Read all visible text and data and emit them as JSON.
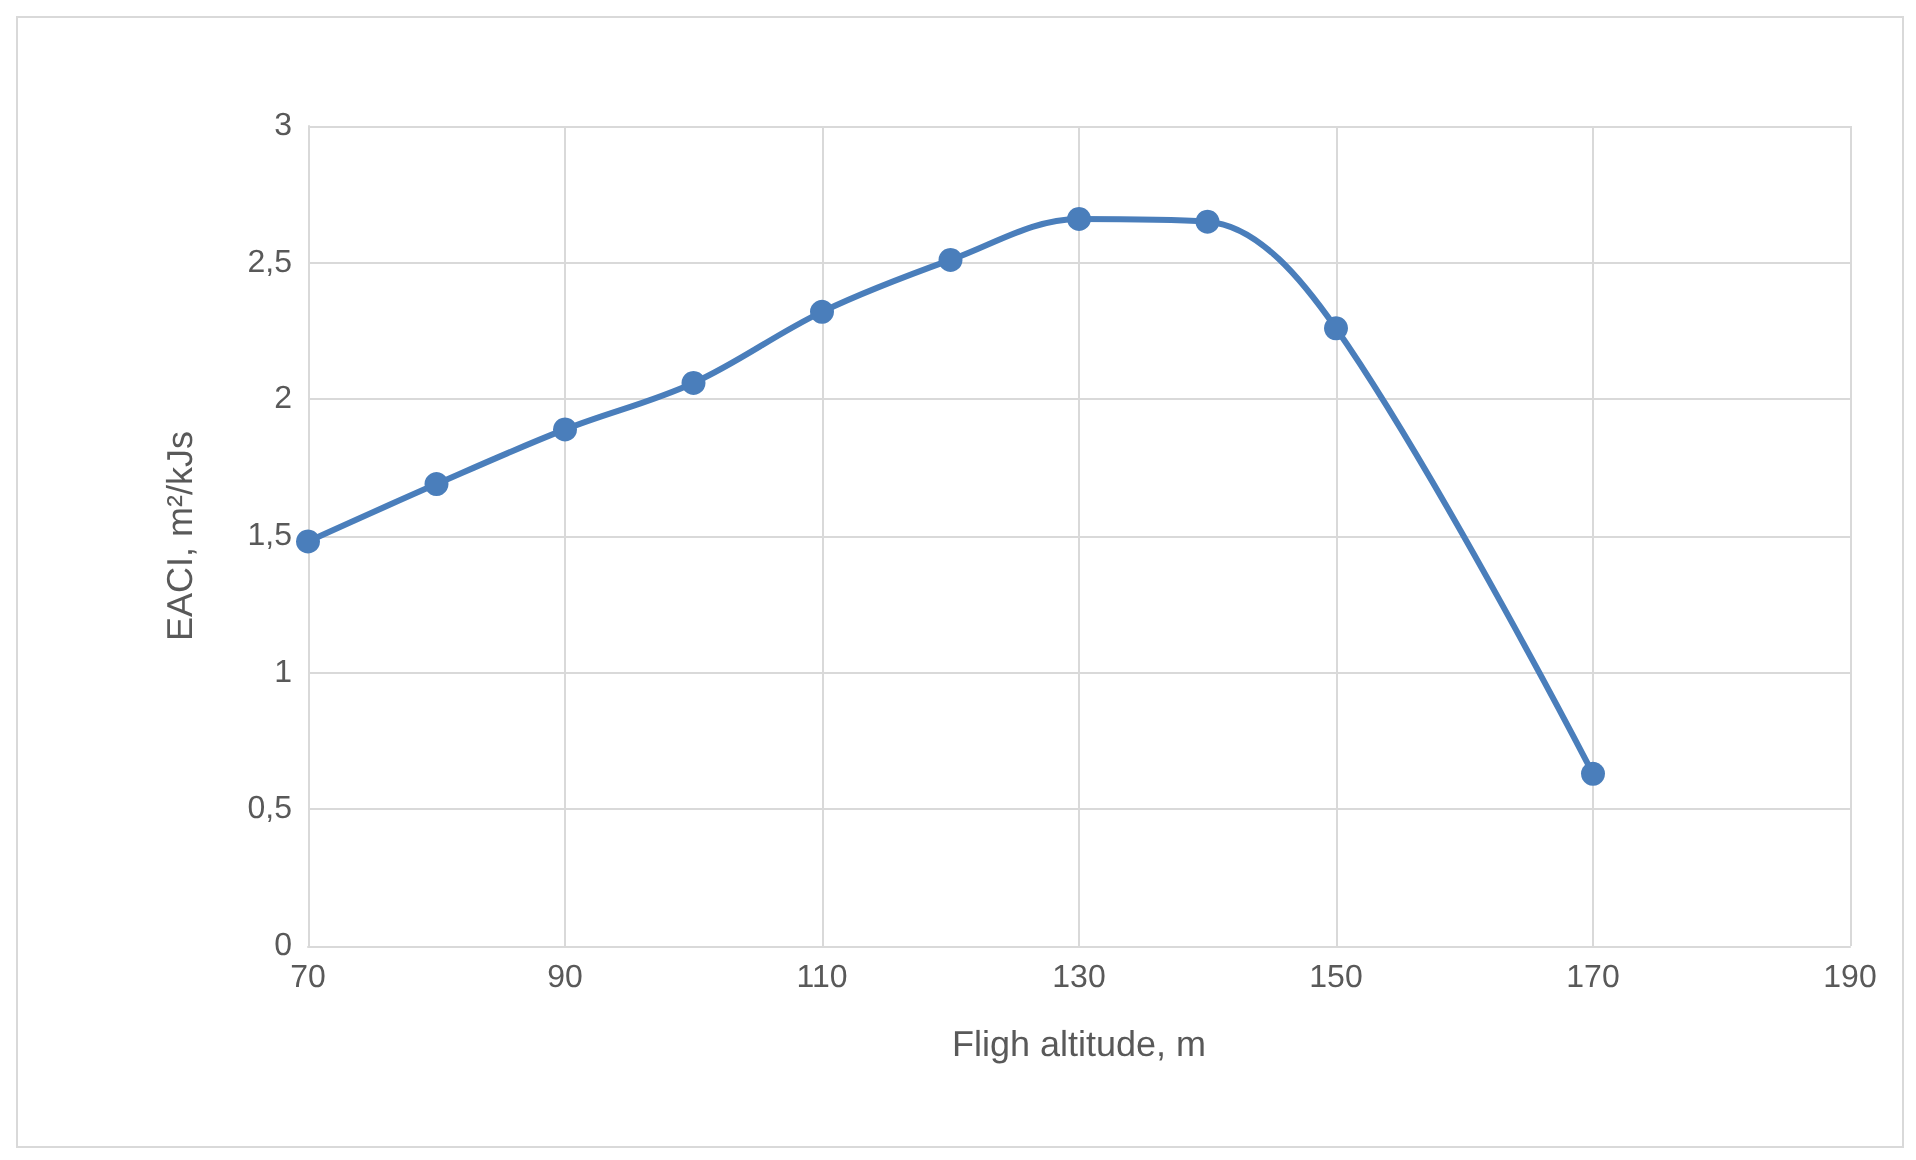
{
  "chart_data": {
    "type": "line",
    "xlabel": "Fligh altitude, m",
    "ylabel": "EACI, m²/kJs",
    "x": [
      70,
      80,
      90,
      100,
      110,
      120,
      130,
      140,
      150,
      170
    ],
    "series": [
      {
        "color": "#4a7ebb",
        "values": [
          1.48,
          1.69,
          1.89,
          2.06,
          2.32,
          2.51,
          2.66,
          2.65,
          2.26,
          0.63
        ]
      }
    ],
    "xlim": [
      70,
      190
    ],
    "xticks": [
      70,
      90,
      110,
      130,
      150,
      170,
      190
    ],
    "ylim": [
      0,
      3
    ],
    "yticks": [
      0,
      {
        "value": 0.5,
        "label": "0,5"
      },
      1,
      {
        "value": 1.5,
        "label": "1,5"
      },
      2,
      {
        "value": 2.5,
        "label": "2,5"
      },
      3
    ],
    "grid": true,
    "marker": "circle",
    "line_style": "solid"
  }
}
